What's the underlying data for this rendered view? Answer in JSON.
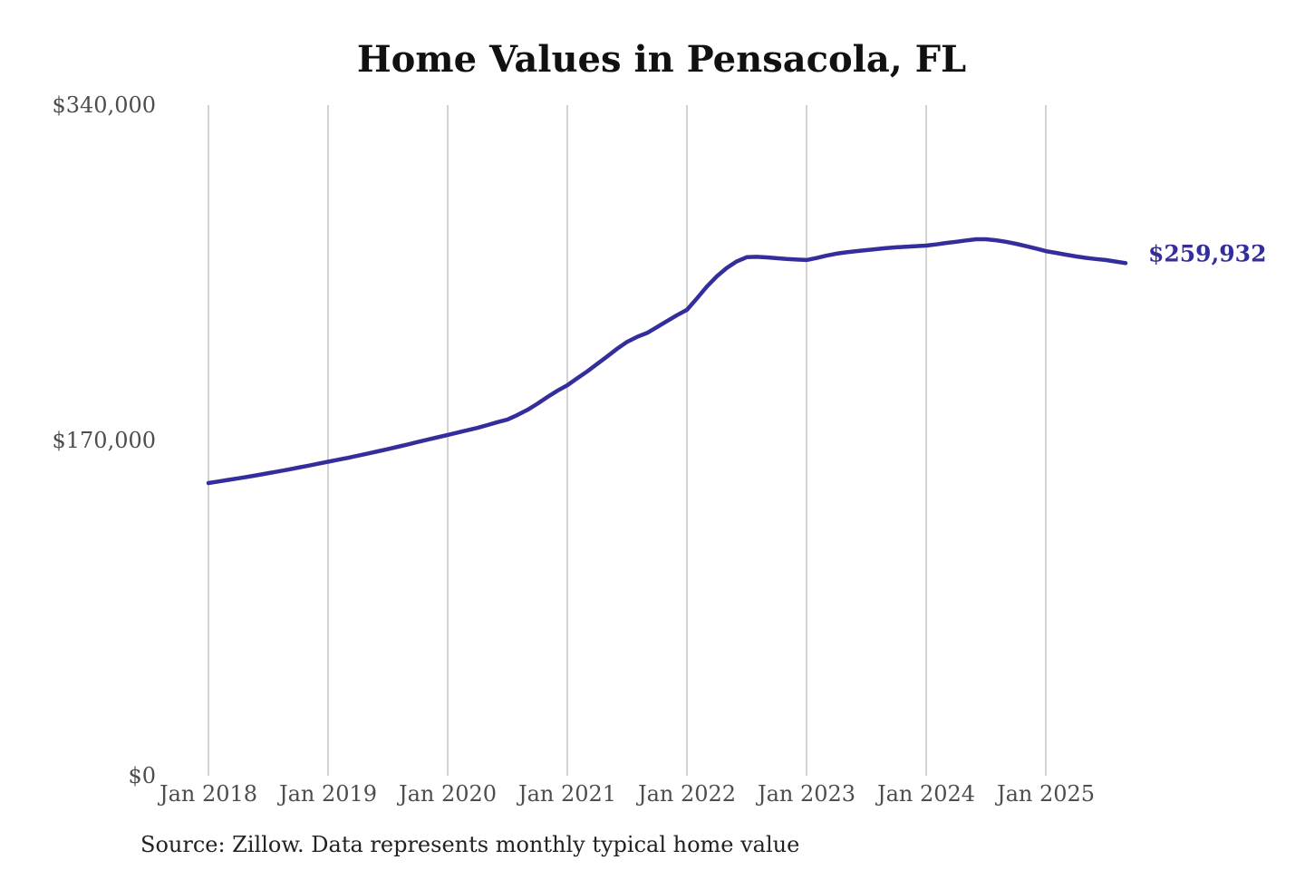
{
  "chart": {
    "title": "Home Values in Pensacola, FL",
    "end_label": "$259,932",
    "source_note": "Source: Zillow. Data represents monthly typical home value",
    "colors": {
      "line": "#342e9d",
      "end_label": "#342e9d",
      "gridline": "#c6c6c6",
      "tick_text": "#4d4d4d",
      "title_text": "#111111",
      "source_text": "#222222",
      "background": "#ffffff"
    }
  },
  "chart_data": {
    "type": "line",
    "title": "Home Values in Pensacola, FL",
    "xlabel": "",
    "ylabel": "",
    "ylim": [
      0,
      340000
    ],
    "y_ticks": [
      0,
      170000,
      340000
    ],
    "y_tick_labels": [
      "$0",
      "$170,000",
      "$340,000"
    ],
    "x_tick_labels": [
      "Jan 2018",
      "Jan 2019",
      "Jan 2020",
      "Jan 2021",
      "Jan 2022",
      "Jan 2023",
      "Jan 2024",
      "Jan 2025"
    ],
    "grid": "vertical-only",
    "legend": "none",
    "annotation": {
      "final_value": 259932,
      "final_value_label": "$259,932"
    },
    "series": [
      {
        "name": "Monthly typical home value",
        "frequency": "monthly",
        "x_start": "2018-01",
        "x_end": "2025-09",
        "months": [
          "2018-01",
          "2018-02",
          "2018-03",
          "2018-04",
          "2018-05",
          "2018-06",
          "2018-07",
          "2018-08",
          "2018-09",
          "2018-10",
          "2018-11",
          "2018-12",
          "2019-01",
          "2019-02",
          "2019-03",
          "2019-04",
          "2019-05",
          "2019-06",
          "2019-07",
          "2019-08",
          "2019-09",
          "2019-10",
          "2019-11",
          "2019-12",
          "2020-01",
          "2020-02",
          "2020-03",
          "2020-04",
          "2020-05",
          "2020-06",
          "2020-07",
          "2020-08",
          "2020-09",
          "2020-10",
          "2020-11",
          "2020-12",
          "2021-01",
          "2021-02",
          "2021-03",
          "2021-04",
          "2021-05",
          "2021-06",
          "2021-07",
          "2021-08",
          "2021-09",
          "2021-10",
          "2021-11",
          "2021-12",
          "2022-01",
          "2022-02",
          "2022-03",
          "2022-04",
          "2022-05",
          "2022-06",
          "2022-07",
          "2022-08",
          "2022-09",
          "2022-10",
          "2022-11",
          "2022-12",
          "2023-01",
          "2023-02",
          "2023-03",
          "2023-04",
          "2023-05",
          "2023-06",
          "2023-07",
          "2023-08",
          "2023-09",
          "2023-10",
          "2023-11",
          "2023-12",
          "2024-01",
          "2024-02",
          "2024-03",
          "2024-04",
          "2024-05",
          "2024-06",
          "2024-07",
          "2024-08",
          "2024-09",
          "2024-10",
          "2024-11",
          "2024-12",
          "2025-01",
          "2025-02",
          "2025-03",
          "2025-04",
          "2025-05",
          "2025-06",
          "2025-07",
          "2025-08",
          "2025-09"
        ],
        "values": [
          148400,
          149200,
          150000,
          150800,
          151600,
          152500,
          153400,
          154300,
          155200,
          156200,
          157200,
          158200,
          159200,
          160200,
          161200,
          162300,
          163400,
          164500,
          165600,
          166800,
          168000,
          169200,
          170400,
          171600,
          172800,
          174000,
          175200,
          176400,
          177800,
          179300,
          180600,
          182900,
          185500,
          188600,
          192000,
          195200,
          198000,
          201500,
          205000,
          208800,
          212600,
          216500,
          220000,
          222500,
          224500,
          227500,
          230500,
          233500,
          236200,
          242000,
          248000,
          253200,
          257500,
          260800,
          262900,
          263100,
          262800,
          262400,
          262000,
          261700,
          261500,
          262500,
          263700,
          264700,
          265400,
          266000,
          266500,
          267000,
          267500,
          267900,
          268200,
          268500,
          268800,
          269400,
          270100,
          270700,
          271400,
          272000,
          272000,
          271500,
          270700,
          269700,
          268500,
          267300,
          266000,
          265100,
          264200,
          263300,
          262600,
          262000,
          261500,
          260700,
          259932
        ]
      }
    ]
  }
}
